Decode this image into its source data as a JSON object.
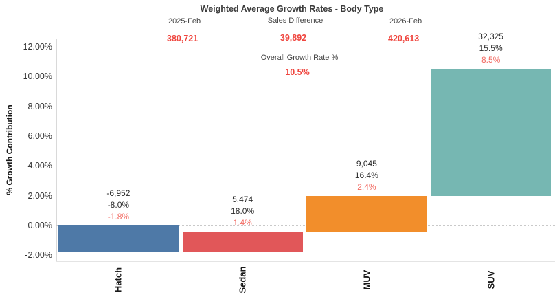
{
  "title": "Weighted Average Growth Rates - Body Type",
  "summary": {
    "period_start": {
      "label": "2025-Feb",
      "value": "380,721"
    },
    "sales_difference": {
      "label": "Sales Difference",
      "value": "39,892"
    },
    "period_end": {
      "label": "2026-Feb",
      "value": "420,613"
    },
    "overall_growth": {
      "label": "Overall Growth Rate %",
      "value": "10.5%"
    }
  },
  "chart_data": {
    "type": "bar",
    "subtype": "waterfall",
    "title": "Weighted Average Growth Rates - Body Type",
    "xlabel": "",
    "ylabel": "% Growth Contribution",
    "ylim": [
      -2.4,
      12.6
    ],
    "legend": "none",
    "grid": "dotted line at 0% only",
    "categories": [
      "Hatch",
      "Sedan",
      "MUV",
      "SUV"
    ],
    "bars": [
      {
        "category": "Hatch",
        "sales_difference": -6952,
        "sales_difference_label": "-6,952",
        "growth_rate_pct": -8.0,
        "growth_rate_label": "-8.0%",
        "contribution_pct": -1.8,
        "contribution_label": "-1.8%",
        "start": 0.0,
        "end": -1.8,
        "color": "#4e79a7"
      },
      {
        "category": "Sedan",
        "sales_difference": 5474,
        "sales_difference_label": "5,474",
        "growth_rate_pct": 18.0,
        "growth_rate_label": "18.0%",
        "contribution_pct": 1.4,
        "contribution_label": "1.4%",
        "start": -1.8,
        "end": -0.4,
        "color": "#e15759"
      },
      {
        "category": "MUV",
        "sales_difference": 9045,
        "sales_difference_label": "9,045",
        "growth_rate_pct": 16.4,
        "growth_rate_label": "16.4%",
        "contribution_pct": 2.4,
        "contribution_label": "2.4%",
        "start": -0.4,
        "end": 2.0,
        "color": "#f28e2b"
      },
      {
        "category": "SUV",
        "sales_difference": 32325,
        "sales_difference_label": "32,325",
        "growth_rate_pct": 15.5,
        "growth_rate_label": "15.5%",
        "contribution_pct": 8.5,
        "contribution_label": "8.5%",
        "start": 2.0,
        "end": 10.5,
        "color": "#76b7b2"
      }
    ],
    "yticks": [
      {
        "value": 12,
        "label": "12.00%"
      },
      {
        "value": 10,
        "label": "10.00%"
      },
      {
        "value": 8,
        "label": "8.00%"
      },
      {
        "value": 6,
        "label": "6.00%"
      },
      {
        "value": 4,
        "label": "4.00%"
      },
      {
        "value": 2,
        "label": "2.00%"
      },
      {
        "value": 0,
        "label": "0.00%"
      },
      {
        "value": -2,
        "label": "-2.00%"
      }
    ]
  },
  "colors": {
    "value_red": "#ef453e",
    "contribution_red": "#f26b63",
    "text_black": "#2b2b2b",
    "axis_line": "#d9d9d9",
    "zero_line": "#c9c9c9"
  }
}
